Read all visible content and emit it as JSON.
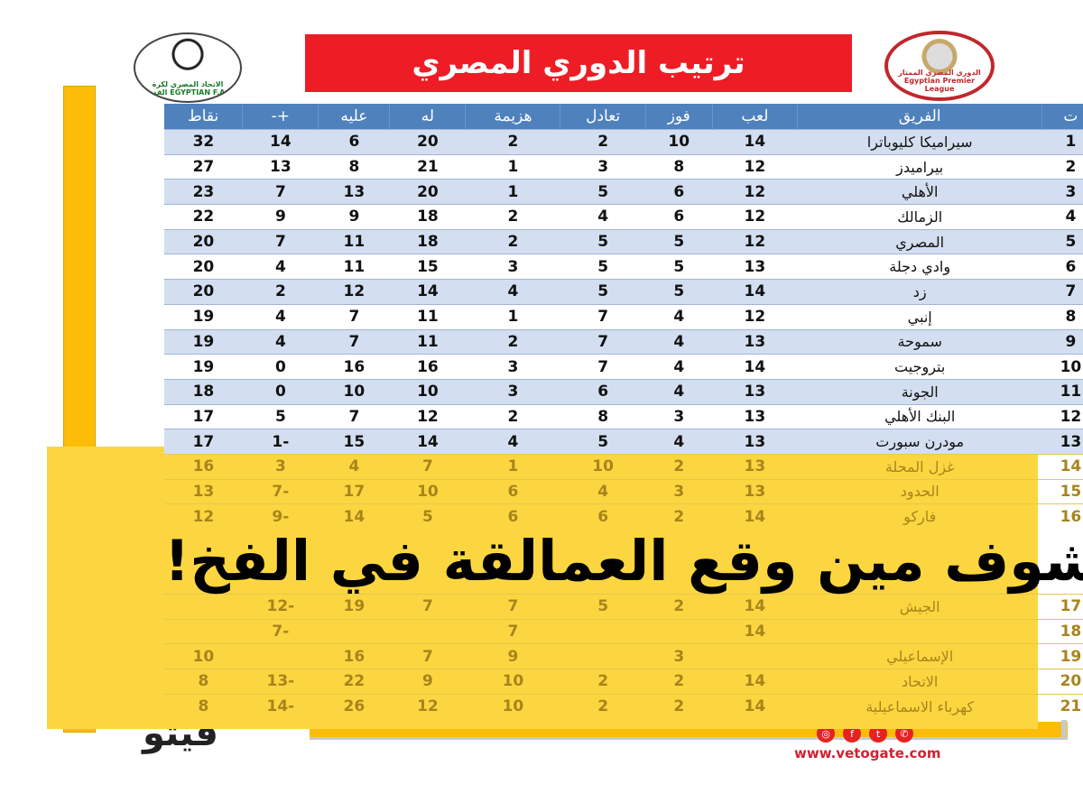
{
  "header": {
    "title": "ترتيب الدوري المصري",
    "efa_logo_text": "الاتحاد المصري لكرة القدم EGYPTIAN F.A.",
    "epl_logo_text": "الدوري المصري الممتاز Egyptian Premier League"
  },
  "table": {
    "columns": [
      "ت",
      "الفريق",
      "لعب",
      "فوز",
      "تعادل",
      "هزيمة",
      "له",
      "عليه",
      "+-",
      "نقاط"
    ],
    "rows": [
      [
        "1",
        "سيراميكا كليوباترا",
        "14",
        "10",
        "2",
        "2",
        "20",
        "6",
        "14",
        "32"
      ],
      [
        "2",
        "بيراميدز",
        "12",
        "8",
        "3",
        "1",
        "21",
        "8",
        "13",
        "27"
      ],
      [
        "3",
        "الأهلي",
        "12",
        "6",
        "5",
        "1",
        "20",
        "13",
        "7",
        "23"
      ],
      [
        "4",
        "الزمالك",
        "12",
        "6",
        "4",
        "2",
        "18",
        "9",
        "9",
        "22"
      ],
      [
        "5",
        "المصري",
        "12",
        "5",
        "5",
        "2",
        "18",
        "11",
        "7",
        "20"
      ],
      [
        "6",
        "وادي دجلة",
        "13",
        "5",
        "5",
        "3",
        "15",
        "11",
        "4",
        "20"
      ],
      [
        "7",
        "زد",
        "14",
        "5",
        "5",
        "4",
        "14",
        "12",
        "2",
        "20"
      ],
      [
        "8",
        "إنبي",
        "12",
        "4",
        "7",
        "1",
        "11",
        "7",
        "4",
        "19"
      ],
      [
        "9",
        "سموحة",
        "13",
        "4",
        "7",
        "2",
        "11",
        "7",
        "4",
        "19"
      ],
      [
        "10",
        "بتروجيت",
        "14",
        "4",
        "7",
        "3",
        "16",
        "16",
        "0",
        "19"
      ],
      [
        "11",
        "الجونة",
        "13",
        "4",
        "6",
        "3",
        "10",
        "10",
        "0",
        "18"
      ],
      [
        "12",
        "البنك الأهلي",
        "13",
        "3",
        "8",
        "2",
        "12",
        "7",
        "5",
        "17"
      ],
      [
        "13",
        "مودرن سبورت",
        "13",
        "4",
        "5",
        "4",
        "14",
        "15",
        "-1",
        "17"
      ],
      [
        "14",
        "غزل المحلة",
        "13",
        "2",
        "10",
        "1",
        "7",
        "4",
        "3",
        "16"
      ],
      [
        "15",
        "الحدود",
        "13",
        "3",
        "4",
        "6",
        "10",
        "17",
        "-7",
        "13"
      ],
      [
        "16",
        "فاركو",
        "14",
        "2",
        "6",
        "6",
        "5",
        "14",
        "-9",
        "12"
      ],
      [
        "17",
        "الجيش",
        "14",
        "2",
        "5",
        "7",
        "7",
        "19",
        "-12",
        ""
      ],
      [
        "18",
        "",
        "14",
        "",
        "",
        "7",
        "",
        "",
        "-7",
        ""
      ],
      [
        "19",
        "الإسماعيلي",
        "",
        "3",
        "",
        "9",
        "7",
        "16",
        "",
        "10"
      ],
      [
        "20",
        "الاتحاد",
        "14",
        "2",
        "2",
        "10",
        "9",
        "22",
        "-13",
        "8"
      ],
      [
        "21",
        "كهرباء الاسماعيلية",
        "14",
        "2",
        "2",
        "10",
        "12",
        "26",
        "-14",
        "8"
      ]
    ]
  },
  "overlay": {
    "headline": "شوف مين وقع العمالقة في الفخ!"
  },
  "footer": {
    "brand_logo_text": "فيتو",
    "social_icons": [
      "instagram-icon",
      "facebook-icon",
      "twitter-icon",
      "whatsapp-icon"
    ],
    "url": "www.vetogate.com"
  },
  "colors": {
    "title_bg": "#ee1c25",
    "header_bg": "#4f81bd",
    "row_alt": "#d3dff0",
    "overlay": "#fcd640",
    "accent_bar": "#fbbd08"
  }
}
